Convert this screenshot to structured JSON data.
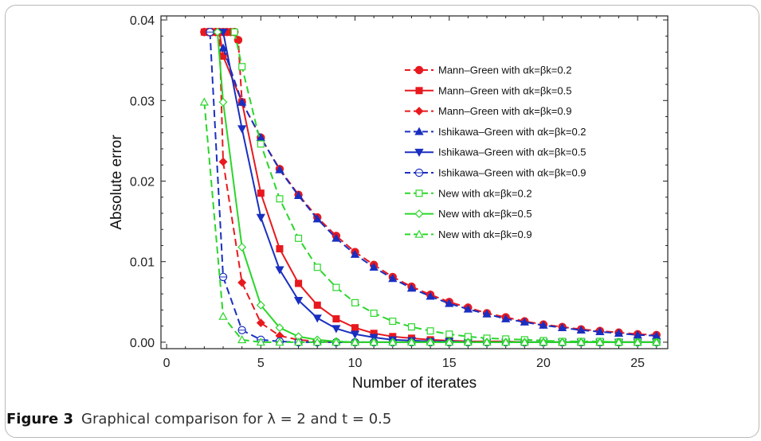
{
  "figure": {
    "caption_label": "Figure 3",
    "caption_text": "Graphical comparison for λ = 2 and t = 0.5"
  },
  "chart_data": {
    "type": "line",
    "xlabel": "Number of iterates",
    "ylabel": "Absolute error",
    "xlim": [
      -0.3,
      26.6
    ],
    "ylim": [
      -0.0008,
      0.0405
    ],
    "x_ticks": [
      0,
      5,
      10,
      15,
      20,
      25
    ],
    "x_tick_labels": [
      "0",
      "5",
      "10",
      "15",
      "20",
      "25"
    ],
    "y_ticks": [
      0.0,
      0.01,
      0.02,
      0.03,
      0.04
    ],
    "y_tick_labels": [
      "0.00",
      "0.01",
      "0.02",
      "0.03",
      "0.04"
    ],
    "grid": false,
    "legend_position": "top-right",
    "series": [
      {
        "name": "Mann–Green with αk=βk=0.2",
        "color": "#e8191e",
        "dash": "dashed",
        "marker": "circle",
        "x": [
          2,
          2.2,
          2.4,
          2.6,
          2.8,
          3,
          3.2,
          3.4,
          3.6,
          3.8,
          4,
          5,
          6,
          7,
          8,
          9,
          10,
          11,
          12,
          13,
          14,
          15,
          16,
          17,
          18,
          19,
          20,
          21,
          22,
          23,
          24,
          25,
          26
        ],
        "values": [
          0.0385,
          0.0385,
          0.0385,
          0.0385,
          0.0385,
          0.0385,
          0.0385,
          0.0385,
          0.0385,
          0.0375,
          0.0298,
          0.0254,
          0.0215,
          0.0183,
          0.0155,
          0.0132,
          0.0112,
          0.0096,
          0.0081,
          0.0069,
          0.0059,
          0.005,
          0.0043,
          0.0036,
          0.0031,
          0.0026,
          0.0022,
          0.0019,
          0.0016,
          0.0014,
          0.0012,
          0.001,
          0.0009
        ]
      },
      {
        "name": "Mann–Green with αk=βk=0.5",
        "color": "#e8191e",
        "dash": "solid",
        "marker": "square",
        "x": [
          2,
          2.2,
          2.4,
          2.6,
          2.8,
          3,
          4,
          5,
          6,
          7,
          8,
          9,
          10,
          11,
          12,
          13,
          14,
          15,
          16,
          17,
          18,
          19,
          20,
          21,
          22,
          23,
          24,
          25,
          26
        ],
        "values": [
          0.0385,
          0.0385,
          0.0385,
          0.0385,
          0.0385,
          0.0355,
          0.0298,
          0.0185,
          0.0116,
          0.0073,
          0.0046,
          0.0029,
          0.0018,
          0.0011,
          0.0007,
          0.0005,
          0.0003,
          0.0002,
          0.0001,
          0.0001,
          0.0001,
          0.0,
          0.0,
          0.0,
          0.0,
          0.0,
          0.0,
          0.0,
          0.0
        ]
      },
      {
        "name": "Mann–Green with αk=βk=0.9",
        "color": "#e8191e",
        "dash": "dashed",
        "marker": "diamond",
        "x": [
          2,
          2.2,
          2.4,
          2.6,
          2.8,
          3,
          4,
          5,
          6,
          7,
          8,
          9,
          10,
          11,
          12,
          13,
          14,
          15,
          16,
          17,
          18,
          19,
          20,
          21,
          22,
          23,
          24,
          25,
          26
        ],
        "values": [
          0.0385,
          0.0385,
          0.0385,
          0.0385,
          0.0385,
          0.0224,
          0.0074,
          0.0024,
          0.0008,
          0.0003,
          0.0001,
          0.0,
          0.0,
          0.0,
          0.0,
          0.0,
          0.0,
          0.0,
          0.0,
          0.0,
          0.0,
          0.0,
          0.0,
          0.0,
          0.0,
          0.0,
          0.0,
          0.0,
          0.0
        ]
      },
      {
        "name": "Ishikawa–Green with αk=βk=0.2",
        "color": "#1a2fc0",
        "dash": "dashed",
        "marker": "triangle-up",
        "x": [
          3,
          4,
          5,
          6,
          7,
          8,
          9,
          10,
          11,
          12,
          13,
          14,
          15,
          16,
          17,
          18,
          19,
          20,
          21,
          22,
          23,
          24,
          25,
          26
        ],
        "values": [
          0.0365,
          0.0298,
          0.0254,
          0.0214,
          0.0182,
          0.0153,
          0.0129,
          0.0109,
          0.0093,
          0.0079,
          0.0067,
          0.0057,
          0.0048,
          0.0041,
          0.0035,
          0.0029,
          0.0025,
          0.0021,
          0.0018,
          0.0015,
          0.0013,
          0.0011,
          0.0009,
          0.0008
        ]
      },
      {
        "name": "Ishikawa–Green with αk=βk=0.5",
        "color": "#1a2fc0",
        "dash": "solid",
        "marker": "triangle-down",
        "x": [
          3,
          4,
          5,
          6,
          7,
          8,
          9,
          10,
          11,
          12,
          13,
          14,
          15,
          16,
          17,
          18,
          19,
          20,
          21,
          22,
          23,
          24,
          25,
          26
        ],
        "values": [
          0.0385,
          0.0265,
          0.0155,
          0.009,
          0.0052,
          0.003,
          0.0017,
          0.001,
          0.0006,
          0.0003,
          0.0002,
          0.0001,
          0.0001,
          0.0,
          0.0,
          0.0,
          0.0,
          0.0,
          0.0,
          0.0,
          0.0,
          0.0,
          0.0,
          0.0
        ]
      },
      {
        "name": "Ishikawa–Green with αk=βk=0.9",
        "color": "#1a2fc0",
        "dash": "dashed",
        "marker": "circle-open",
        "x": [
          2.3,
          3,
          4,
          5,
          6,
          7,
          8,
          9,
          10,
          11,
          12,
          13,
          14,
          15,
          16,
          17,
          18,
          19,
          20,
          21,
          22,
          23,
          24,
          25,
          26
        ],
        "values": [
          0.0385,
          0.0081,
          0.0015,
          0.0003,
          0.0001,
          0.0,
          0.0,
          0.0,
          0.0,
          0.0,
          0.0,
          0.0,
          0.0,
          0.0,
          0.0,
          0.0,
          0.0,
          0.0,
          0.0,
          0.0,
          0.0,
          0.0,
          0.0,
          0.0,
          0.0
        ]
      },
      {
        "name": "New with αk=βk=0.2",
        "color": "#2bd62b",
        "dash": "dashed",
        "marker": "square-open",
        "x": [
          3.6,
          4,
          5,
          6,
          7,
          8,
          9,
          10,
          11,
          12,
          13,
          14,
          15,
          16,
          17,
          18,
          19,
          20,
          21,
          22,
          23,
          24,
          25,
          26
        ],
        "values": [
          0.0385,
          0.0342,
          0.0246,
          0.0178,
          0.0129,
          0.0093,
          0.0068,
          0.0049,
          0.0036,
          0.0026,
          0.0019,
          0.0014,
          0.001,
          0.0007,
          0.0005,
          0.0004,
          0.0003,
          0.0002,
          0.0001,
          0.0001,
          0.0001,
          0.0,
          0.0,
          0.0
        ]
      },
      {
        "name": "New with αk=βk=0.5",
        "color": "#2bd62b",
        "dash": "solid",
        "marker": "diamond-open",
        "x": [
          2.7,
          3,
          4,
          5,
          6,
          7,
          8,
          9,
          10,
          11,
          12,
          13,
          14,
          15,
          16,
          17,
          18,
          19,
          20,
          21,
          22,
          23,
          24,
          25,
          26
        ],
        "values": [
          0.0385,
          0.0298,
          0.0118,
          0.0046,
          0.0018,
          0.0007,
          0.0003,
          0.0001,
          0.0,
          0.0,
          0.0,
          0.0,
          0.0,
          0.0,
          0.0,
          0.0,
          0.0,
          0.0,
          0.0,
          0.0,
          0.0,
          0.0,
          0.0,
          0.0,
          0.0
        ]
      },
      {
        "name": "New with αk=βk=0.9",
        "color": "#2bd62b",
        "dash": "dashed",
        "marker": "triangle-open",
        "x": [
          2,
          3,
          4,
          5,
          6,
          7,
          8,
          9,
          10,
          11,
          12,
          13,
          14,
          15,
          16,
          17,
          18,
          19,
          20,
          21,
          22,
          23,
          24,
          25,
          26
        ],
        "values": [
          0.0298,
          0.0032,
          0.0003,
          0.0,
          0.0,
          0.0,
          0.0,
          0.0,
          0.0,
          0.0,
          0.0,
          0.0,
          0.0,
          0.0,
          0.0,
          0.0,
          0.0,
          0.0,
          0.0,
          0.0,
          0.0,
          0.0,
          0.0,
          0.0,
          0.0
        ]
      }
    ]
  }
}
